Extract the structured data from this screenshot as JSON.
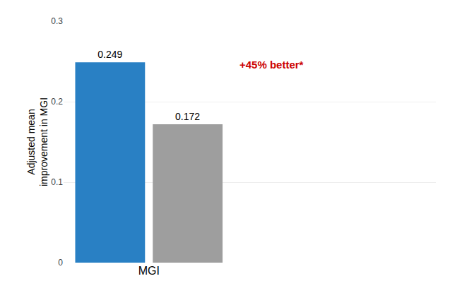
{
  "chart_data": {
    "type": "bar",
    "categories": [
      null,
      null
    ],
    "values": [
      0.249,
      0.172
    ],
    "colors": [
      "#2980C4",
      "#9E9E9E"
    ],
    "data_labels": true,
    "xlabel": "MGI",
    "ylabel": "Adjusted mean\nimprovement in MGI",
    "ylim": [
      0,
      0.3
    ],
    "yticks": [
      0,
      0.1,
      0.2,
      0.3
    ],
    "grid": true,
    "annotations": [
      {
        "text": "+45% better*",
        "color": "#CC0000"
      }
    ]
  }
}
